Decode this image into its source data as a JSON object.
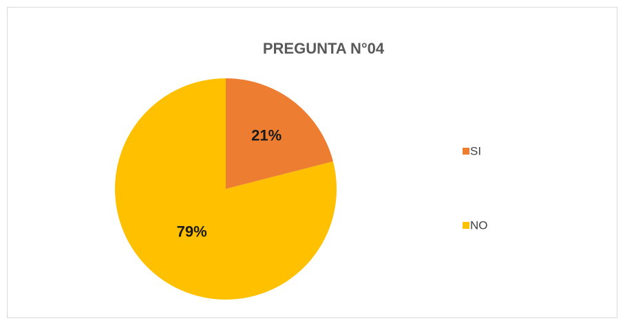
{
  "chart_data": {
    "type": "pie",
    "title": "PREGUNTA N°04",
    "categories": [
      "SI",
      "NO"
    ],
    "values": [
      21,
      79
    ],
    "value_labels": [
      "21%",
      "79%"
    ],
    "colors": [
      "#ED7D31",
      "#FFC000"
    ],
    "legend": "right"
  }
}
